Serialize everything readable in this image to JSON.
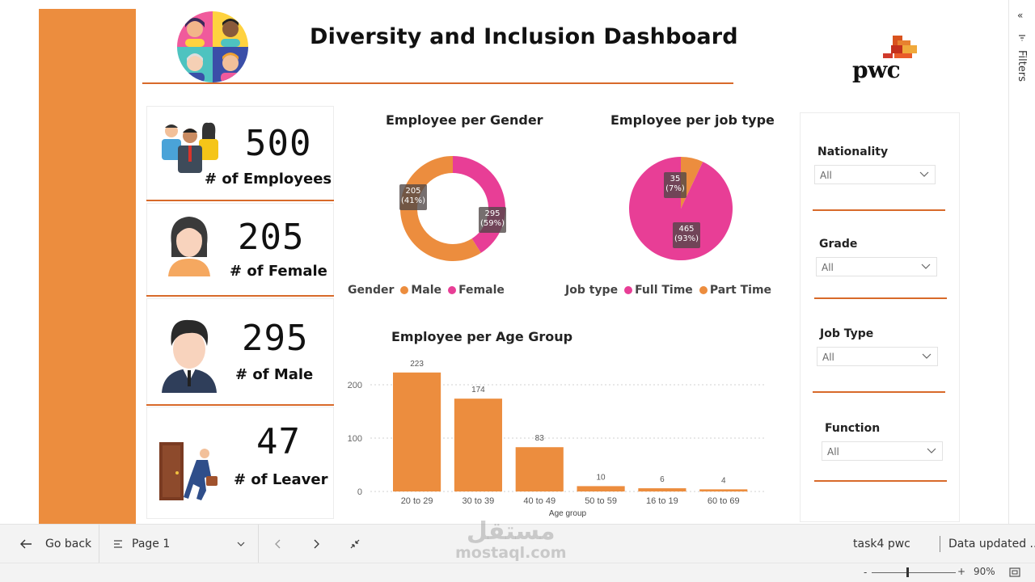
{
  "header": {
    "title": "Diversity and Inclusion Dashboard",
    "brand_text": "pwc"
  },
  "kpis": [
    {
      "value": "500",
      "label": "# of Employees",
      "icon": "people-group-icon"
    },
    {
      "value": "205",
      "label": "# of Female",
      "icon": "woman-icon"
    },
    {
      "value": "295",
      "label": "# of Male",
      "icon": "man-icon"
    },
    {
      "value": "47",
      "label": "# of Leaver",
      "icon": "leaving-door-icon"
    }
  ],
  "gender_chart": {
    "title": "Employee per Gender",
    "legend_title": "Gender",
    "labels": [
      {
        "value": "205",
        "pct": "(41%)"
      },
      {
        "value": "295",
        "pct": "(59%)"
      }
    ],
    "legend": [
      {
        "name": "Male",
        "color": "#ec8d3e"
      },
      {
        "name": "Female",
        "color": "#e83e96"
      }
    ]
  },
  "jobtype_chart": {
    "title": "Employee per job type",
    "legend_title": "Job type",
    "labels": [
      {
        "value": "35",
        "pct": "(7%)"
      },
      {
        "value": "465",
        "pct": "(93%)"
      }
    ],
    "legend": [
      {
        "name": "Full Time",
        "color": "#e83e96"
      },
      {
        "name": "Part Time",
        "color": "#ec8d3e"
      }
    ]
  },
  "chart_data": [
    {
      "type": "pie",
      "title": "Employee per Gender",
      "categories": [
        "Female",
        "Male"
      ],
      "values": [
        205,
        295
      ],
      "percentages": [
        41,
        59
      ],
      "colors": [
        "#e83e96",
        "#ec8d3e"
      ],
      "donut": true,
      "legend_position": "bottom-left"
    },
    {
      "type": "pie",
      "title": "Employee per job type",
      "categories": [
        "Part Time",
        "Full Time"
      ],
      "values": [
        35,
        465
      ],
      "percentages": [
        7,
        93
      ],
      "colors": [
        "#ec8d3e",
        "#e83e96"
      ],
      "donut": false,
      "legend_position": "bottom-left"
    },
    {
      "type": "bar",
      "title": "Employee per Age Group",
      "xlabel": "Age group",
      "ylabel": "",
      "categories": [
        "20 to 29",
        "30 to 39",
        "40 to 49",
        "50 to 59",
        "16 to 19",
        "60 to 69"
      ],
      "values": [
        223,
        174,
        83,
        10,
        6,
        4
      ],
      "yticks": [
        0,
        100,
        200
      ],
      "ylim": [
        0,
        240
      ],
      "color": "#ec8d3e",
      "grid": true
    }
  ],
  "filters": [
    {
      "label": "Nationality",
      "value": "All"
    },
    {
      "label": "Grade",
      "value": "All"
    },
    {
      "label": "Job Type",
      "value": "All"
    },
    {
      "label": "Function",
      "value": "All"
    }
  ],
  "filters_pane": {
    "label": "Filters"
  },
  "bottom_nav": {
    "go_back": "Go back",
    "page": "Page 1",
    "report_name": "task4 pwc",
    "data_updated": "Data updated ..."
  },
  "status": {
    "zoom": "90%"
  },
  "watermark": {
    "arabic": "مستقل",
    "latin": "mostaql.com"
  },
  "colors": {
    "accent": "#ec8d3e",
    "pink": "#e83e96",
    "rule": "#d86a2a"
  }
}
